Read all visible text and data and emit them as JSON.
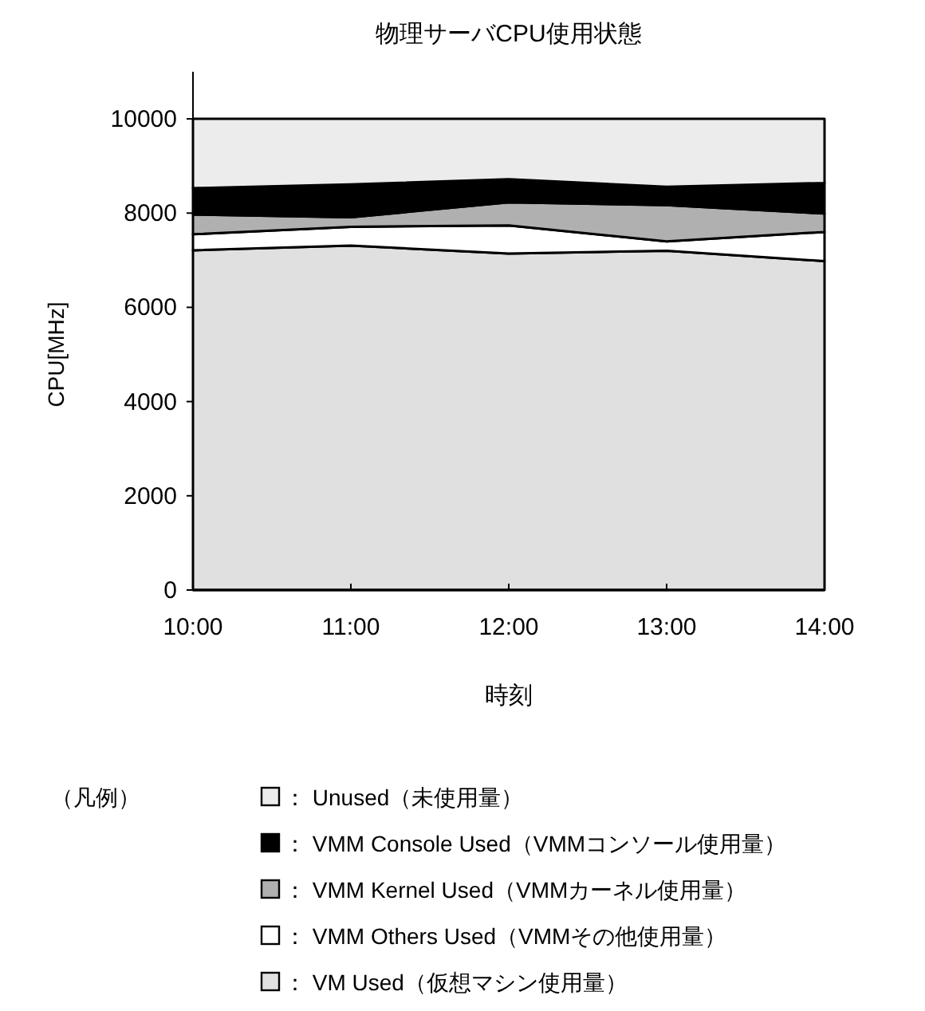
{
  "chart_data": {
    "type": "area",
    "stacked": true,
    "title": "物理サーバCPU使用状態",
    "xlabel": "時刻",
    "ylabel": "CPU[MHz]",
    "legend_title": "（凡例）",
    "legend": "bottom",
    "x": [
      10,
      11,
      12,
      13,
      14
    ],
    "xlim": [
      10,
      14
    ],
    "xticks": [
      {
        "value": 10,
        "label": "10:00"
      },
      {
        "value": 11,
        "label": "11:00"
      },
      {
        "value": 12,
        "label": "12:00"
      },
      {
        "value": 13,
        "label": "13:00"
      },
      {
        "value": 14,
        "label": "14:00"
      }
    ],
    "ylim": [
      0,
      11000
    ],
    "yticks": [
      0,
      2000,
      4000,
      6000,
      8000,
      10000
    ],
    "series": [
      {
        "name": "： VM Used（仮想マシン使用量）",
        "color": "#e0e0e0",
        "values": [
          7210,
          7310,
          7140,
          7200,
          6980
        ]
      },
      {
        "name": "： VMM Others Used（VMMその他使用量）",
        "color": "#ffffff",
        "values": [
          340,
          400,
          600,
          200,
          620
        ]
      },
      {
        "name": "： VMM Kernel Used（VMMカーネル使用量）",
        "color": "#b0b0b0",
        "values": [
          420,
          200,
          490,
          770,
          390
        ]
      },
      {
        "name": "： VMM Console Used（VMMコンソール使用量）",
        "color": "#000000",
        "values": [
          560,
          700,
          490,
          390,
          650
        ]
      },
      {
        "name": "： Unused（未使用量）",
        "color": "#ececec",
        "values": [
          1470,
          1390,
          1280,
          1440,
          1360
        ]
      }
    ]
  }
}
